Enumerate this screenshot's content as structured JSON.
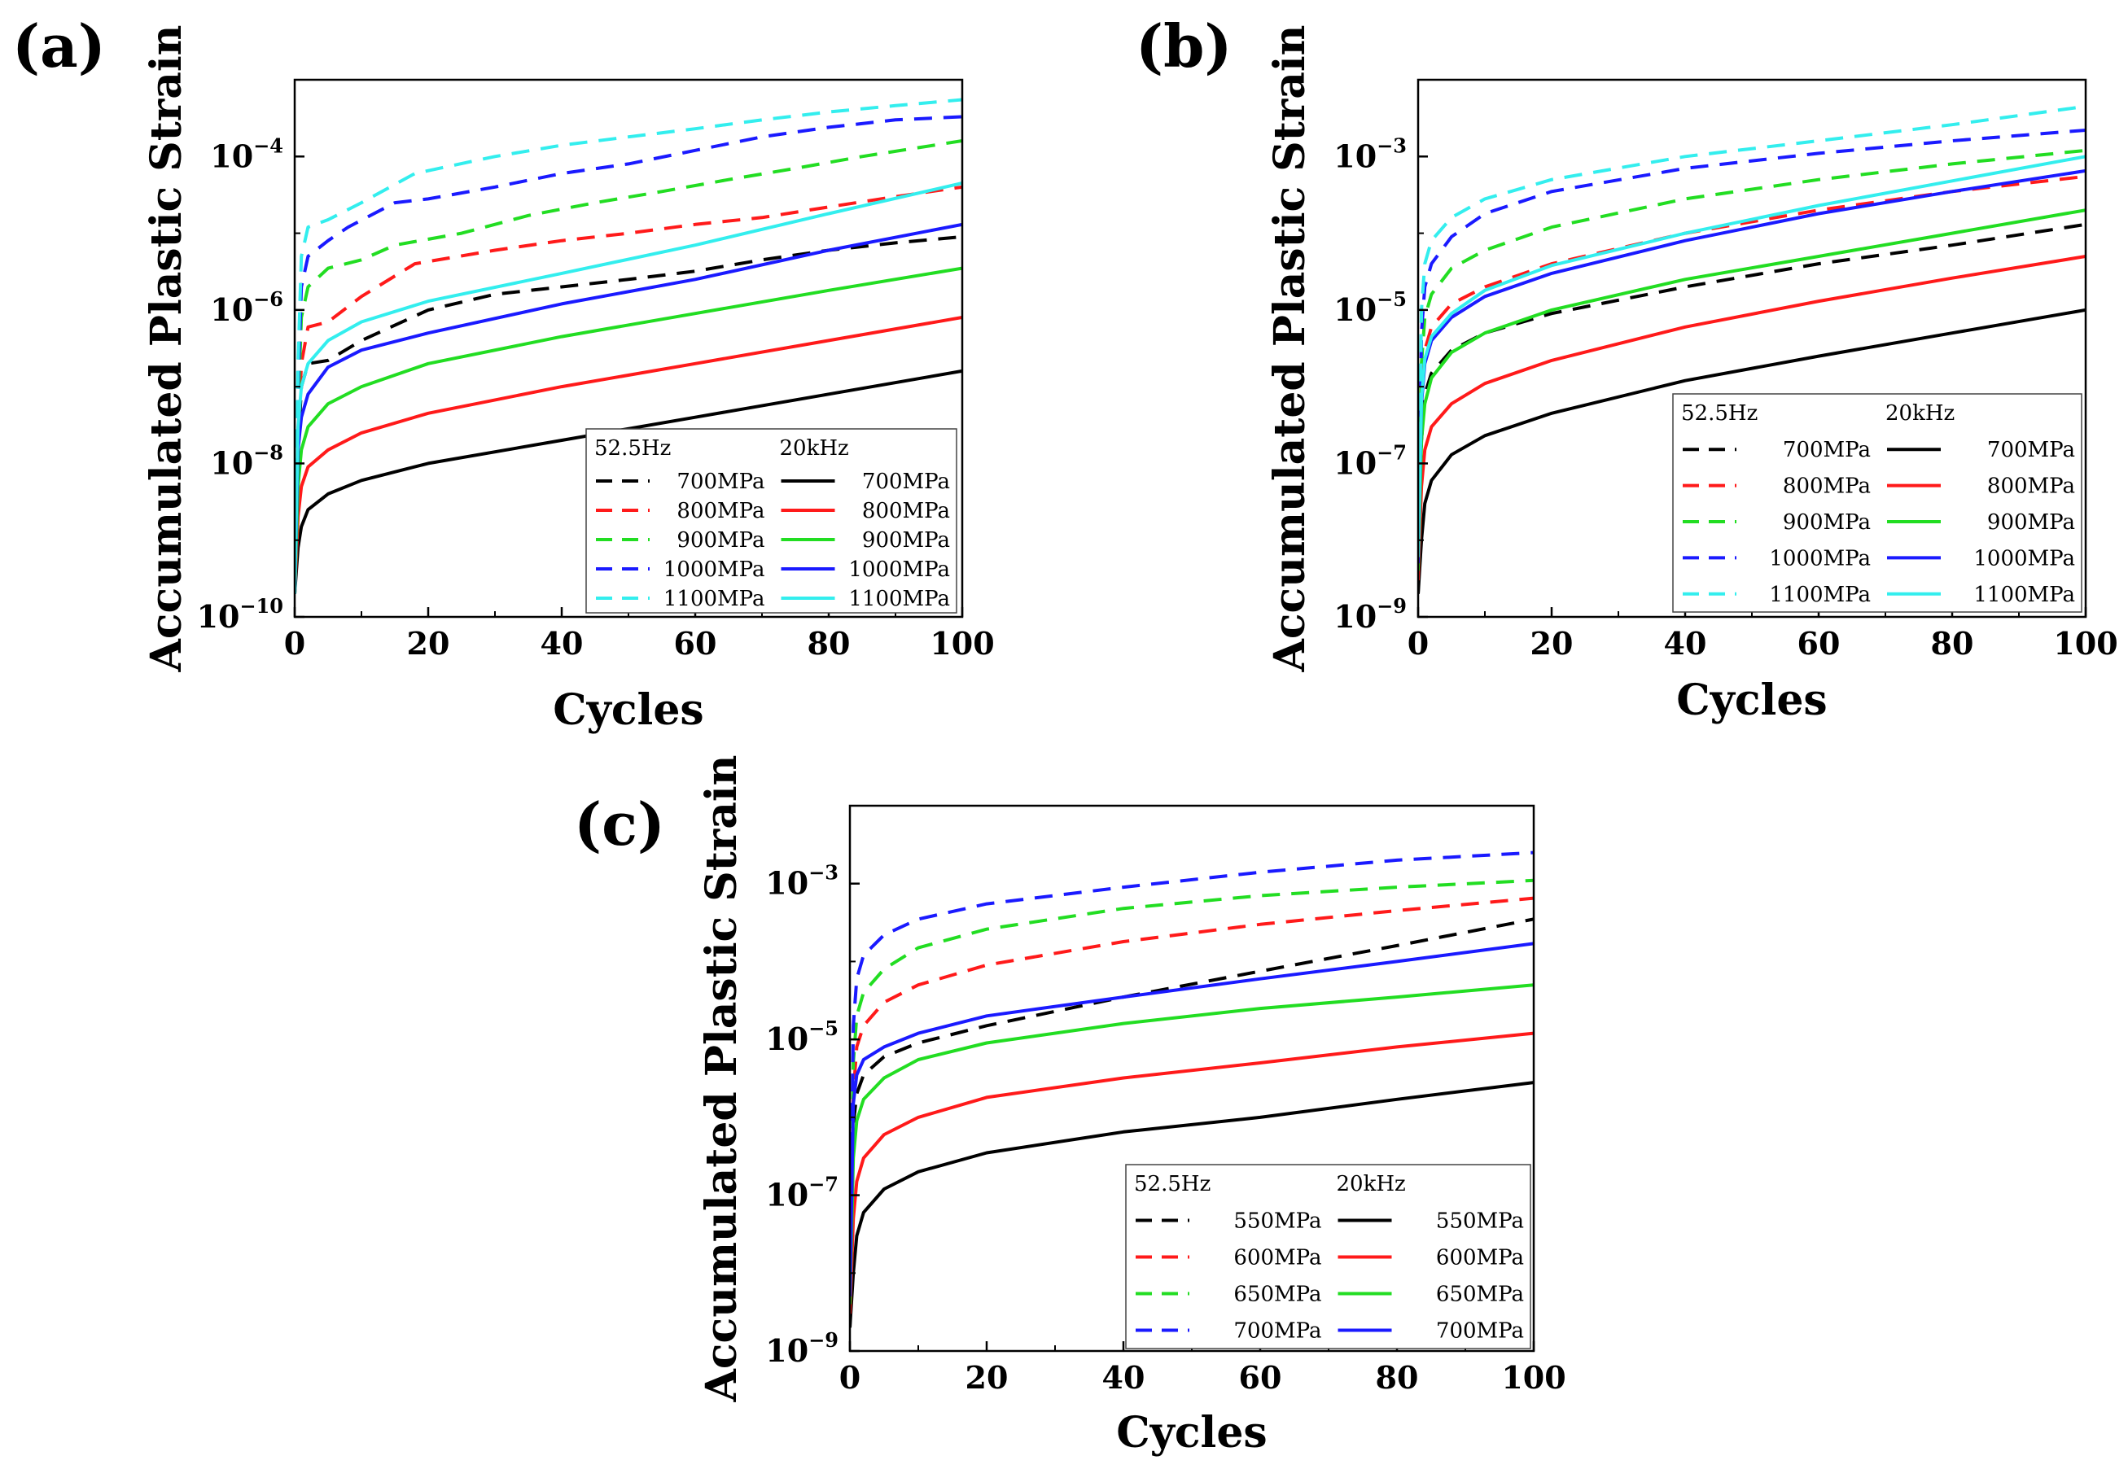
{
  "colors": {
    "black": "#000000",
    "red": "#ff1a1a",
    "green": "#22dd22",
    "blue": "#1a1aff",
    "cyan": "#33eeee"
  },
  "chart_data": [
    {
      "type": "line",
      "panel_label": "(a)",
      "xlabel": "Cycles",
      "ylabel": "Accumulated Plastic Strain",
      "xlim": [
        0,
        100
      ],
      "ylim": [
        1e-10,
        0.001
      ],
      "yscale": "log",
      "xticks": [
        "0",
        "20",
        "40",
        "60",
        "80",
        "100"
      ],
      "yticks": [
        {
          "value": 1e-10,
          "exp": "−10"
        },
        {
          "value": 1e-08,
          "exp": "−8"
        },
        {
          "value": 1e-06,
          "exp": "−6"
        },
        {
          "value": 0.0001,
          "exp": "−4"
        }
      ],
      "legend": {
        "position": "lower-right",
        "headers": [
          "52.5Hz",
          "20kHz"
        ]
      },
      "series": [
        {
          "name": "700MPa",
          "group": "52.5Hz",
          "dash": true,
          "color": "#000000",
          "x": [
            0,
            0.5,
            1,
            2,
            5,
            10,
            20,
            30,
            40,
            50,
            60,
            70,
            80,
            90,
            100
          ],
          "y": [
            2e-10,
            1.5e-08,
            1e-07,
            2e-07,
            2.2e-07,
            4e-07,
            1e-06,
            1.6e-06,
            2e-06,
            2.5e-06,
            3.2e-06,
            4.5e-06,
            6e-06,
            7.5e-06,
            9e-06
          ]
        },
        {
          "name": "800MPa",
          "group": "52.5Hz",
          "dash": true,
          "color": "#ff1a1a",
          "x": [
            0,
            0.5,
            1,
            2,
            5,
            10,
            18,
            30,
            40,
            50,
            60,
            70,
            80,
            90,
            100
          ],
          "y": [
            2e-10,
            2e-08,
            2e-07,
            6e-07,
            7e-07,
            1.5e-06,
            4e-06,
            6e-06,
            8e-06,
            1e-05,
            1.3e-05,
            1.6e-05,
            2.2e-05,
            3e-05,
            4e-05
          ]
        },
        {
          "name": "900MPa",
          "group": "52.5Hz",
          "dash": true,
          "color": "#22dd22",
          "x": [
            0,
            0.5,
            1,
            2,
            5,
            10,
            15,
            25,
            35,
            45,
            55,
            65,
            75,
            85,
            100
          ],
          "y": [
            2e-10,
            5e-08,
            8e-07,
            2e-06,
            3.5e-06,
            4.5e-06,
            7e-06,
            1e-05,
            1.7e-05,
            2.5e-05,
            3.5e-05,
            5e-05,
            7e-05,
            0.0001,
            0.00016
          ]
        },
        {
          "name": "1000MPa",
          "group": "52.5Hz",
          "dash": true,
          "color": "#1a1aff",
          "x": [
            0,
            0.5,
            1,
            2,
            5,
            8,
            15,
            20,
            30,
            40,
            50,
            60,
            70,
            80,
            90,
            100
          ],
          "y": [
            2e-10,
            1e-07,
            2e-06,
            5e-06,
            8e-06,
            1.2e-05,
            2.5e-05,
            2.8e-05,
            4e-05,
            6e-05,
            8e-05,
            0.00012,
            0.00018,
            0.00024,
            0.0003,
            0.00033
          ]
        },
        {
          "name": "1100MPa",
          "group": "52.5Hz",
          "dash": true,
          "color": "#33eeee",
          "x": [
            0,
            0.5,
            1,
            2,
            5,
            10,
            18,
            30,
            40,
            50,
            60,
            70,
            80,
            90,
            100
          ],
          "y": [
            2e-10,
            2e-07,
            5e-06,
            1.2e-05,
            1.5e-05,
            2.5e-05,
            6e-05,
            0.0001,
            0.00014,
            0.00018,
            0.00023,
            0.0003,
            0.00038,
            0.00046,
            0.00055
          ]
        },
        {
          "name": "700MPa",
          "group": "20kHz",
          "dash": false,
          "color": "#000000",
          "x": [
            0,
            0.5,
            1,
            2,
            5,
            10,
            20,
            40,
            60,
            80,
            100
          ],
          "y": [
            2e-10,
            8e-10,
            1.5e-09,
            2.5e-09,
            4e-09,
            6e-09,
            1e-08,
            2e-08,
            4e-08,
            8e-08,
            1.6e-07
          ]
        },
        {
          "name": "800MPa",
          "group": "20kHz",
          "dash": false,
          "color": "#ff1a1a",
          "x": [
            0,
            0.5,
            1,
            2,
            5,
            10,
            20,
            40,
            60,
            80,
            100
          ],
          "y": [
            2e-10,
            2e-09,
            5e-09,
            9e-09,
            1.5e-08,
            2.5e-08,
            4.5e-08,
            1e-07,
            2e-07,
            4e-07,
            8e-07
          ]
        },
        {
          "name": "900MPa",
          "group": "20kHz",
          "dash": false,
          "color": "#22dd22",
          "x": [
            0,
            0.5,
            1,
            2,
            5,
            10,
            20,
            40,
            60,
            80,
            100
          ],
          "y": [
            2e-10,
            5e-09,
            1.5e-08,
            3e-08,
            6e-08,
            1e-07,
            2e-07,
            4.5e-07,
            9e-07,
            1.8e-06,
            3.5e-06
          ]
        },
        {
          "name": "1000MPa",
          "group": "20kHz",
          "dash": false,
          "color": "#1a1aff",
          "x": [
            0,
            0.5,
            1,
            2,
            5,
            10,
            20,
            40,
            60,
            80,
            100
          ],
          "y": [
            2e-10,
            1.5e-08,
            4e-08,
            8e-08,
            1.8e-07,
            3e-07,
            5e-07,
            1.2e-06,
            2.5e-06,
            6e-06,
            1.3e-05
          ]
        },
        {
          "name": "1100MPa",
          "group": "20kHz",
          "dash": false,
          "color": "#33eeee",
          "x": [
            0,
            0.5,
            1,
            2,
            5,
            10,
            20,
            40,
            60,
            80,
            100
          ],
          "y": [
            2e-10,
            3e-08,
            1e-07,
            2e-07,
            4e-07,
            7e-07,
            1.3e-06,
            3e-06,
            7e-06,
            1.8e-05,
            4.5e-05
          ]
        }
      ]
    },
    {
      "type": "line",
      "panel_label": "(b)",
      "xlabel": "Cycles",
      "ylabel": "Accumulated Plastic Strain",
      "xlim": [
        0,
        100
      ],
      "ylim": [
        1e-09,
        0.01
      ],
      "yscale": "log",
      "xticks": [
        "0",
        "20",
        "40",
        "60",
        "80",
        "100"
      ],
      "yticks": [
        {
          "value": 1e-09,
          "exp": "−9"
        },
        {
          "value": 1e-07,
          "exp": "−7"
        },
        {
          "value": 1e-05,
          "exp": "−5"
        },
        {
          "value": 0.001,
          "exp": "−3"
        }
      ],
      "legend": {
        "position": "lower-right",
        "headers": [
          "52.5Hz",
          "20kHz"
        ]
      },
      "series": [
        {
          "name": "700MPa",
          "group": "52.5Hz",
          "dash": true,
          "color": "#000000",
          "x": [
            0,
            0.5,
            1,
            2,
            5,
            10,
            20,
            40,
            60,
            80,
            100
          ],
          "y": [
            2e-09,
            2e-07,
            8e-07,
            1.5e-06,
            3e-06,
            5e-06,
            9e-06,
            2e-05,
            4e-05,
            7e-05,
            0.00013
          ]
        },
        {
          "name": "800MPa",
          "group": "52.5Hz",
          "dash": true,
          "color": "#ff1a1a",
          "x": [
            0,
            0.5,
            1,
            2,
            5,
            10,
            20,
            40,
            60,
            80,
            100
          ],
          "y": [
            3e-09,
            8e-07,
            3e-06,
            6e-06,
            1.2e-05,
            2e-05,
            4e-05,
            0.0001,
            0.0002,
            0.00035,
            0.00055
          ]
        },
        {
          "name": "900MPa",
          "group": "52.5Hz",
          "dash": true,
          "color": "#22dd22",
          "x": [
            0,
            0.5,
            1,
            2,
            5,
            10,
            20,
            40,
            60,
            80,
            100
          ],
          "y": [
            4e-09,
            2e-06,
            8e-06,
            1.6e-05,
            3.5e-05,
            6e-05,
            0.00012,
            0.00028,
            0.0005,
            0.0008,
            0.0012
          ]
        },
        {
          "name": "1000MPa",
          "group": "52.5Hz",
          "dash": true,
          "color": "#1a1aff",
          "x": [
            0,
            0.5,
            1,
            2,
            5,
            10,
            20,
            40,
            60,
            80,
            100
          ],
          "y": [
            5e-09,
            5e-06,
            2e-05,
            4e-05,
            9e-05,
            0.00018,
            0.00035,
            0.0007,
            0.0011,
            0.0016,
            0.0022
          ]
        },
        {
          "name": "1100MPa",
          "group": "52.5Hz",
          "dash": true,
          "color": "#33eeee",
          "x": [
            0,
            0.5,
            1,
            2,
            5,
            10,
            20,
            40,
            60,
            80,
            100
          ],
          "y": [
            6e-09,
            1e-05,
            4e-05,
            8e-05,
            0.00016,
            0.00028,
            0.0005,
            0.001,
            0.0016,
            0.0026,
            0.0045
          ]
        },
        {
          "name": "700MPa",
          "group": "20kHz",
          "dash": false,
          "color": "#000000",
          "x": [
            0,
            0.5,
            1,
            2,
            5,
            10,
            20,
            40,
            60,
            80,
            100
          ],
          "y": [
            2e-09,
            1e-08,
            3e-08,
            6e-08,
            1.3e-07,
            2.3e-07,
            4.5e-07,
            1.2e-06,
            2.5e-06,
            5e-06,
            1e-05
          ]
        },
        {
          "name": "800MPa",
          "group": "20kHz",
          "dash": false,
          "color": "#ff1a1a",
          "x": [
            0,
            0.5,
            1,
            2,
            5,
            10,
            20,
            40,
            60,
            80,
            100
          ],
          "y": [
            3e-09,
            5e-08,
            1.5e-07,
            3e-07,
            6e-07,
            1.1e-06,
            2.2e-06,
            6e-06,
            1.3e-05,
            2.6e-05,
            5e-05
          ]
        },
        {
          "name": "900MPa",
          "group": "20kHz",
          "dash": false,
          "color": "#22dd22",
          "x": [
            0,
            0.5,
            1,
            2,
            5,
            10,
            20,
            40,
            60,
            80,
            100
          ],
          "y": [
            4e-09,
            2e-07,
            6e-07,
            1.3e-06,
            2.8e-06,
            5e-06,
            1e-05,
            2.5e-05,
            5e-05,
            0.0001,
            0.0002
          ]
        },
        {
          "name": "1000MPa",
          "group": "20kHz",
          "dash": false,
          "color": "#1a1aff",
          "x": [
            0,
            0.5,
            1,
            2,
            5,
            10,
            20,
            40,
            60,
            80,
            100
          ],
          "y": [
            5e-09,
            6e-07,
            2e-06,
            4e-06,
            8e-06,
            1.5e-05,
            3e-05,
            8e-05,
            0.00018,
            0.00035,
            0.00065
          ]
        },
        {
          "name": "1100MPa",
          "group": "20kHz",
          "dash": false,
          "color": "#33eeee",
          "x": [
            0,
            0.5,
            1,
            2,
            5,
            10,
            20,
            40,
            60,
            80,
            100
          ],
          "y": [
            6e-09,
            7e-07,
            2.3e-06,
            4.5e-06,
            9e-06,
            1.8e-05,
            3.8e-05,
            0.0001,
            0.00023,
            0.00048,
            0.001
          ]
        }
      ]
    },
    {
      "type": "line",
      "panel_label": "(c)",
      "xlabel": "Cycles",
      "ylabel": "Accumulated Plastic Strain",
      "xlim": [
        0,
        100
      ],
      "ylim": [
        1e-09,
        0.01
      ],
      "yscale": "log",
      "xticks": [
        "0",
        "20",
        "40",
        "60",
        "80",
        "100"
      ],
      "yticks": [
        {
          "value": 1e-09,
          "exp": "−9"
        },
        {
          "value": 1e-07,
          "exp": "−7"
        },
        {
          "value": 1e-05,
          "exp": "−5"
        },
        {
          "value": 0.001,
          "exp": "−3"
        }
      ],
      "legend": {
        "position": "lower-right",
        "headers": [
          "52.5Hz",
          "20kHz"
        ]
      },
      "series": [
        {
          "name": "550MPa",
          "group": "52.5Hz",
          "dash": true,
          "color": "#000000",
          "x": [
            0,
            0.5,
            1,
            2,
            5,
            10,
            20,
            40,
            60,
            80,
            100
          ],
          "y": [
            2e-09,
            8e-07,
            2e-06,
            3.5e-06,
            6e-06,
            9e-06,
            1.5e-05,
            3.5e-05,
            7.5e-05,
            0.00016,
            0.00035
          ]
        },
        {
          "name": "600MPa",
          "group": "52.5Hz",
          "dash": true,
          "color": "#ff1a1a",
          "x": [
            0,
            0.5,
            1,
            2,
            5,
            10,
            20,
            40,
            60,
            80,
            100
          ],
          "y": [
            3e-09,
            2e-06,
            8e-06,
            1.5e-05,
            3e-05,
            5e-05,
            9e-05,
            0.00018,
            0.0003,
            0.00045,
            0.00065
          ]
        },
        {
          "name": "650MPa",
          "group": "52.5Hz",
          "dash": true,
          "color": "#22dd22",
          "x": [
            0,
            0.5,
            1,
            2,
            5,
            10,
            20,
            40,
            60,
            80,
            100
          ],
          "y": [
            4e-09,
            5e-06,
            2e-05,
            4e-05,
            8e-05,
            0.00015,
            0.00026,
            0.00048,
            0.0007,
            0.0009,
            0.0011
          ]
        },
        {
          "name": "700MPa",
          "group": "52.5Hz",
          "dash": true,
          "color": "#1a1aff",
          "x": [
            0,
            0.5,
            1,
            2,
            5,
            10,
            20,
            40,
            60,
            80,
            100
          ],
          "y": [
            5e-09,
            1.5e-05,
            6e-05,
            0.00012,
            0.00022,
            0.00035,
            0.00055,
            0.0009,
            0.0014,
            0.002,
            0.0025
          ]
        },
        {
          "name": "550MPa",
          "group": "20kHz",
          "dash": false,
          "color": "#000000",
          "x": [
            0,
            0.5,
            1,
            2,
            5,
            10,
            20,
            40,
            60,
            80,
            100
          ],
          "y": [
            2e-09,
            1e-08,
            3e-08,
            6e-08,
            1.2e-07,
            2e-07,
            3.5e-07,
            6.5e-07,
            1e-06,
            1.7e-06,
            2.8e-06
          ]
        },
        {
          "name": "600MPa",
          "group": "20kHz",
          "dash": false,
          "color": "#ff1a1a",
          "x": [
            0,
            0.5,
            1,
            2,
            5,
            10,
            20,
            40,
            60,
            80,
            100
          ],
          "y": [
            3e-09,
            5e-08,
            1.5e-07,
            3e-07,
            6e-07,
            1e-06,
            1.8e-06,
            3.2e-06,
            5e-06,
            8e-06,
            1.2e-05
          ]
        },
        {
          "name": "650MPa",
          "group": "20kHz",
          "dash": false,
          "color": "#22dd22",
          "x": [
            0,
            0.5,
            1,
            2,
            5,
            10,
            20,
            40,
            60,
            80,
            100
          ],
          "y": [
            4e-09,
            3e-07,
            9e-07,
            1.7e-06,
            3.2e-06,
            5.5e-06,
            9e-06,
            1.6e-05,
            2.5e-05,
            3.5e-05,
            5e-05
          ]
        },
        {
          "name": "700MPa",
          "group": "20kHz",
          "dash": false,
          "color": "#1a1aff",
          "x": [
            0,
            0.5,
            1,
            2,
            5,
            10,
            20,
            40,
            60,
            80,
            100
          ],
          "y": [
            5e-09,
            1.5e-06,
            3.5e-06,
            5.5e-06,
            8e-06,
            1.2e-05,
            2e-05,
            3.5e-05,
            6e-05,
            0.0001,
            0.00017
          ]
        }
      ]
    }
  ]
}
